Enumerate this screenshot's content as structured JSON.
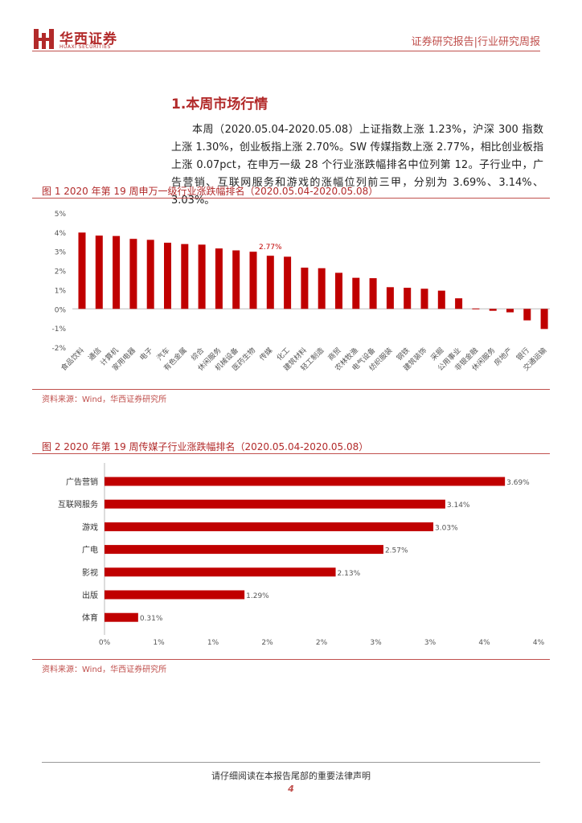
{
  "header": {
    "logo_cn": "华西证券",
    "logo_en": "HUAXI SECURITIES",
    "right_text": "证券研究报告|行业研究周报",
    "brand_color": "#b22a2a"
  },
  "section": {
    "title": "1.本周市场行情",
    "paragraph": "本周（2020.05.04-2020.05.08）上证指数上涨 1.23%，沪深 300 指数上涨 1.30%，创业板指上涨 2.70%。SW 传媒指数上涨 2.77%，相比创业板指上涨 0.07pct，在申万一级 28 个行业涨跌幅排名中位列第 12。子行业中，广告营销、互联网服务和游戏的涨幅位列前三甲，分别为 3.69%、3.14%、3.03%。"
  },
  "figure1": {
    "title": "图 1 2020 年第 19 周申万一级行业涨跌幅排名（2020.05.04-2020.05.08）",
    "source": "资料来源：Wind，华西证券研究所"
  },
  "figure2": {
    "title": "图 2 2020 年第 19 周传媒子行业涨跌幅排名（2020.05.04-2020.05.08）",
    "source": "资料来源：Wind，华西证券研究所"
  },
  "chart_data": [
    {
      "type": "bar",
      "orientation": "vertical",
      "categories": [
        "食品饮料",
        "通信",
        "计算机",
        "家用电器",
        "电子",
        "汽车",
        "有色金属",
        "综合",
        "休闲服务",
        "机械设备",
        "医药生物",
        "传媒",
        "化工",
        "建筑材料",
        "轻工制造",
        "商贸",
        "农林牧渔",
        "电气设备",
        "纺织服装",
        "钢铁",
        "建筑装饰",
        "采掘",
        "公用事业",
        "非银金融",
        "休闲服务",
        "房地产",
        "银行",
        "交通运输"
      ],
      "values": [
        3.98,
        3.82,
        3.8,
        3.65,
        3.6,
        3.45,
        3.38,
        3.35,
        3.15,
        3.05,
        2.98,
        2.77,
        2.72,
        2.15,
        2.12,
        1.88,
        1.62,
        1.6,
        1.13,
        1.1,
        1.05,
        0.95,
        0.55,
        0.02,
        -0.1,
        -0.18,
        -0.6,
        -1.05
      ],
      "data_labels": [
        {
          "index": 11,
          "text": "2.77%"
        }
      ],
      "y_ticks": [
        "-2%",
        "-1%",
        "0%",
        "1%",
        "2%",
        "3%",
        "4%",
        "5%"
      ],
      "ylim": [
        -2,
        5
      ],
      "bar_color": "#c00000",
      "grid": false
    },
    {
      "type": "bar",
      "orientation": "horizontal",
      "categories": [
        "广告营销",
        "互联网服务",
        "游戏",
        "广电",
        "影视",
        "出版",
        "体育"
      ],
      "values": [
        3.69,
        3.14,
        3.03,
        2.57,
        2.13,
        1.29,
        0.31
      ],
      "value_labels": [
        "3.69%",
        "3.14%",
        "3.03%",
        "2.57%",
        "2.13%",
        "1.29%",
        "0.31%"
      ],
      "x_ticks": [
        "0%",
        "1%",
        "1%",
        "2%",
        "2%",
        "3%",
        "3%",
        "4%",
        "4%"
      ],
      "xlim": [
        0,
        4
      ],
      "bar_color": "#c00000",
      "grid": false
    }
  ],
  "footer": {
    "notice": "请仔细阅读在本报告尾部的重要法律声明",
    "page": "4"
  }
}
